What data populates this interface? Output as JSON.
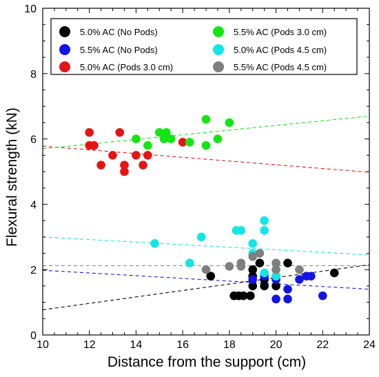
{
  "chart_data": {
    "type": "scatter",
    "title": "",
    "xlabel": "Distance from the support (cm)",
    "ylabel": "Flexural strength (kN)",
    "xlim": [
      10,
      24
    ],
    "ylim": [
      0,
      10
    ],
    "xticks": [
      10,
      12,
      14,
      16,
      18,
      20,
      22,
      24
    ],
    "yticks": [
      0,
      2,
      4,
      6,
      8,
      10
    ],
    "grid": false,
    "legend_position": "top-left",
    "series": [
      {
        "name": "5.0% AC (No Pods)",
        "color": "#000000",
        "points": [
          [
            17.2,
            1.8
          ],
          [
            18.2,
            1.2
          ],
          [
            18.4,
            1.2
          ],
          [
            18.6,
            1.2
          ],
          [
            18.9,
            1.2
          ],
          [
            19.0,
            1.5
          ],
          [
            19.0,
            1.8
          ],
          [
            19.0,
            2.0
          ],
          [
            19.3,
            2.2
          ],
          [
            19.5,
            1.5
          ],
          [
            19.5,
            1.7
          ],
          [
            20.0,
            1.5
          ],
          [
            20.0,
            1.8
          ],
          [
            20.5,
            2.2
          ],
          [
            22.5,
            1.9
          ]
        ],
        "trend": [
          [
            10,
            0.77
          ],
          [
            24,
            2.15
          ]
        ]
      },
      {
        "name": "5.5% AC (No Pods)",
        "color": "#1414e6",
        "points": [
          [
            19.0,
            1.7
          ],
          [
            19.5,
            1.8
          ],
          [
            20.0,
            1.1
          ],
          [
            20.0,
            1.7
          ],
          [
            20.5,
            1.1
          ],
          [
            20.5,
            1.4
          ],
          [
            21.0,
            1.7
          ],
          [
            21.3,
            1.8
          ],
          [
            21.5,
            1.8
          ],
          [
            22.0,
            1.2
          ]
        ],
        "trend": [
          [
            10,
            1.98
          ],
          [
            24,
            1.4
          ]
        ]
      },
      {
        "name": "5.0% AC (Pods 3.0 cm)",
        "color": "#e61414",
        "points": [
          [
            12.0,
            6.2
          ],
          [
            12.0,
            5.8
          ],
          [
            12.2,
            5.8
          ],
          [
            12.5,
            5.2
          ],
          [
            13.0,
            5.5
          ],
          [
            13.3,
            6.2
          ],
          [
            13.5,
            5.2
          ],
          [
            13.5,
            5.0
          ],
          [
            14.0,
            5.5
          ],
          [
            14.3,
            5.2
          ],
          [
            14.5,
            5.5
          ],
          [
            16.0,
            5.9
          ]
        ],
        "trend": [
          [
            10,
            5.78
          ],
          [
            24,
            4.98
          ]
        ]
      },
      {
        "name": "5.5% AC (Pods 3.0 cm)",
        "color": "#14e614",
        "points": [
          [
            14.0,
            6.0
          ],
          [
            14.5,
            5.8
          ],
          [
            15.0,
            6.2
          ],
          [
            15.2,
            6.0
          ],
          [
            15.3,
            6.2
          ],
          [
            15.5,
            6.0
          ],
          [
            16.3,
            5.9
          ],
          [
            17.0,
            6.6
          ],
          [
            17.0,
            5.8
          ],
          [
            17.5,
            6.0
          ],
          [
            18.0,
            6.5
          ]
        ],
        "trend": [
          [
            10,
            5.7
          ],
          [
            24,
            6.7
          ]
        ]
      },
      {
        "name": "5.0% AC (Pods 4.5 cm)",
        "color": "#14e6e6",
        "points": [
          [
            14.8,
            2.8
          ],
          [
            16.3,
            2.2
          ],
          [
            16.8,
            3.0
          ],
          [
            18.3,
            3.2
          ],
          [
            18.5,
            3.2
          ],
          [
            19.0,
            2.8
          ],
          [
            19.0,
            2.5
          ],
          [
            19.5,
            3.5
          ],
          [
            19.5,
            3.2
          ],
          [
            19.5,
            1.9
          ],
          [
            20.0,
            2.0
          ],
          [
            20.0,
            1.8
          ]
        ],
        "trend": [
          [
            10,
            3.0
          ],
          [
            24,
            2.45
          ]
        ]
      },
      {
        "name": "5.5% AC (Pods 4.5 cm)",
        "color": "#7f7f7f",
        "points": [
          [
            17.0,
            2.0
          ],
          [
            18.0,
            2.1
          ],
          [
            18.5,
            2.1
          ],
          [
            18.5,
            2.2
          ],
          [
            19.0,
            2.4
          ],
          [
            19.3,
            2.5
          ],
          [
            20.0,
            2.0
          ],
          [
            20.0,
            2.2
          ],
          [
            21.0,
            2.0
          ]
        ],
        "trend": [
          [
            10,
            2.12
          ],
          [
            24,
            2.12
          ]
        ]
      }
    ]
  }
}
